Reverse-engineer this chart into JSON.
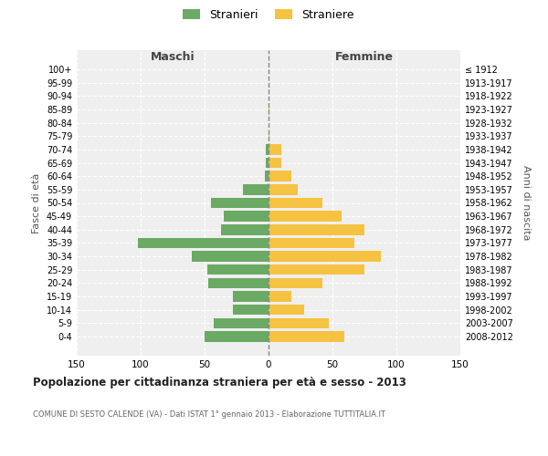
{
  "age_groups": [
    "0-4",
    "5-9",
    "10-14",
    "15-19",
    "20-24",
    "25-29",
    "30-34",
    "35-39",
    "40-44",
    "45-49",
    "50-54",
    "55-59",
    "60-64",
    "65-69",
    "70-74",
    "75-79",
    "80-84",
    "85-89",
    "90-94",
    "95-99",
    "100+"
  ],
  "birth_years": [
    "2008-2012",
    "2003-2007",
    "1998-2002",
    "1993-1997",
    "1988-1992",
    "1983-1987",
    "1978-1982",
    "1973-1977",
    "1968-1972",
    "1963-1967",
    "1958-1962",
    "1953-1957",
    "1948-1952",
    "1943-1947",
    "1938-1942",
    "1933-1937",
    "1928-1932",
    "1923-1927",
    "1918-1922",
    "1913-1917",
    "≤ 1912"
  ],
  "males": [
    50,
    43,
    28,
    28,
    47,
    48,
    60,
    102,
    37,
    35,
    45,
    20,
    3,
    2,
    2,
    0,
    0,
    0,
    0,
    0,
    0
  ],
  "females": [
    59,
    47,
    28,
    18,
    42,
    75,
    88,
    67,
    75,
    57,
    42,
    23,
    18,
    10,
    10,
    1,
    0,
    1,
    0,
    0,
    0
  ],
  "male_color": "#6aaa64",
  "female_color": "#f5c242",
  "grid_color": "#cccccc",
  "title": "Popolazione per cittadinanza straniera per età e sesso - 2013",
  "subtitle": "COMUNE DI SESTO CALENDE (VA) - Dati ISTAT 1° gennaio 2013 - Elaborazione TUTTITALIA.IT",
  "xlabel_left": "Maschi",
  "xlabel_right": "Femmine",
  "ylabel_left": "Fasce di età",
  "ylabel_right": "Anni di nascita",
  "legend_male": "Stranieri",
  "legend_female": "Straniere",
  "xlim": 150,
  "background_color": "#ffffff",
  "plot_bg_color": "#efefef"
}
